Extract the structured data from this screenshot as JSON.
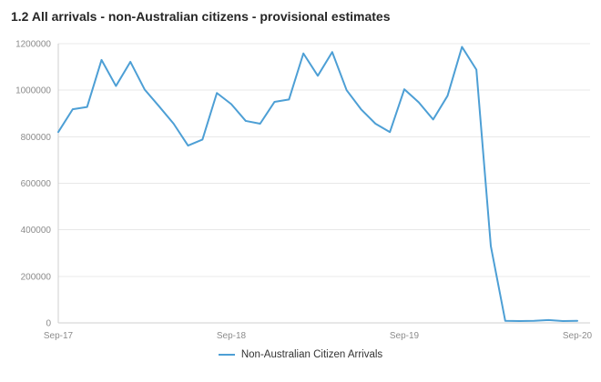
{
  "title": "1.2 All arrivals - non-Australian citizens - provisional estimates",
  "legend": {
    "label": "Non-Australian Citizen Arrivals"
  },
  "chart_data": {
    "type": "line",
    "title": "1.2 All arrivals - non-Australian citizens - provisional estimates",
    "xlabel": "",
    "ylabel": "",
    "ylim": [
      0,
      1200000
    ],
    "grid": "horizontal",
    "legend_position": "bottom",
    "x_tick_labels": [
      "Sep-17",
      "Sep-18",
      "Sep-19",
      "Sep-20"
    ],
    "y_ticks": [
      0,
      200000,
      400000,
      600000,
      800000,
      1000000,
      1200000
    ],
    "y_tick_labels": [
      "0",
      "200000",
      "400000",
      "600000",
      "800000",
      "1000000",
      "1200000"
    ],
    "x": [
      "Sep-17",
      "Oct-17",
      "Nov-17",
      "Dec-17",
      "Jan-18",
      "Feb-18",
      "Mar-18",
      "Apr-18",
      "May-18",
      "Jun-18",
      "Jul-18",
      "Aug-18",
      "Sep-18",
      "Oct-18",
      "Nov-18",
      "Dec-18",
      "Jan-19",
      "Feb-19",
      "Mar-19",
      "Apr-19",
      "May-19",
      "Jun-19",
      "Jul-19",
      "Aug-19",
      "Sep-19",
      "Oct-19",
      "Nov-19",
      "Dec-19",
      "Jan-20",
      "Feb-20",
      "Mar-20",
      "Apr-20",
      "May-20",
      "Jun-20",
      "Jul-20",
      "Aug-20",
      "Sep-20"
    ],
    "series": [
      {
        "name": "Non-Australian Citizen Arrivals",
        "color": "#4d9fd5",
        "values": [
          820000,
          918000,
          928000,
          1130000,
          1018000,
          1122000,
          1002000,
          930000,
          856000,
          762000,
          788000,
          988000,
          940000,
          868000,
          856000,
          950000,
          960000,
          1158000,
          1062000,
          1164000,
          1000000,
          918000,
          856000,
          820000,
          1004000,
          948000,
          874000,
          976000,
          1186000,
          1088000,
          330000,
          9000,
          8000,
          9000,
          12000,
          8000,
          9000
        ]
      }
    ],
    "colors": {
      "series_line": "#4d9fd5",
      "gridline": "#e8e8e8",
      "axis_line": "#cfcfcf",
      "tick_text": "#8c8c8c",
      "title_text": "#262626",
      "legend_text": "#333333"
    }
  }
}
